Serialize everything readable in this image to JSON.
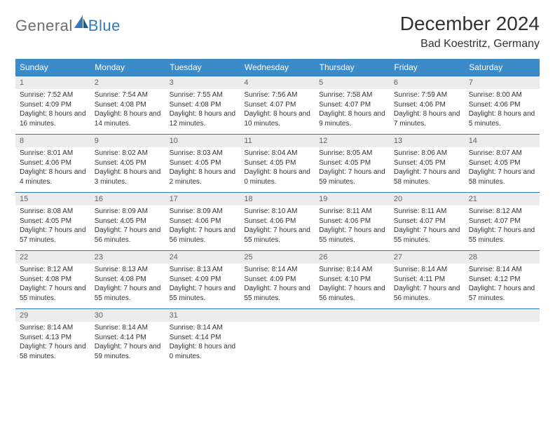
{
  "logo": {
    "part1": "General",
    "part2": "Blue"
  },
  "title": "December 2024",
  "subtitle": "Bad Koestritz, Germany",
  "colors": {
    "header_bg": "#3b8bc8",
    "header_text": "#ffffff",
    "rule": "#2f7bbf",
    "daynum_bg": "#ececec",
    "daynum_text": "#636363",
    "body_text": "#333333",
    "logo_gray": "#6e6e6e",
    "logo_blue": "#2f7bbf",
    "page_bg": "#ffffff"
  },
  "typography": {
    "title_fontsize": 28,
    "subtitle_fontsize": 16,
    "weekday_fontsize": 12,
    "daynum_fontsize": 11,
    "detail_fontsize": 10
  },
  "weekdays": [
    "Sunday",
    "Monday",
    "Tuesday",
    "Wednesday",
    "Thursday",
    "Friday",
    "Saturday"
  ],
  "weeks": [
    [
      {
        "day": "1",
        "sunrise": "Sunrise: 7:52 AM",
        "sunset": "Sunset: 4:09 PM",
        "daylight": "Daylight: 8 hours and 16 minutes."
      },
      {
        "day": "2",
        "sunrise": "Sunrise: 7:54 AM",
        "sunset": "Sunset: 4:08 PM",
        "daylight": "Daylight: 8 hours and 14 minutes."
      },
      {
        "day": "3",
        "sunrise": "Sunrise: 7:55 AM",
        "sunset": "Sunset: 4:08 PM",
        "daylight": "Daylight: 8 hours and 12 minutes."
      },
      {
        "day": "4",
        "sunrise": "Sunrise: 7:56 AM",
        "sunset": "Sunset: 4:07 PM",
        "daylight": "Daylight: 8 hours and 10 minutes."
      },
      {
        "day": "5",
        "sunrise": "Sunrise: 7:58 AM",
        "sunset": "Sunset: 4:07 PM",
        "daylight": "Daylight: 8 hours and 9 minutes."
      },
      {
        "day": "6",
        "sunrise": "Sunrise: 7:59 AM",
        "sunset": "Sunset: 4:06 PM",
        "daylight": "Daylight: 8 hours and 7 minutes."
      },
      {
        "day": "7",
        "sunrise": "Sunrise: 8:00 AM",
        "sunset": "Sunset: 4:06 PM",
        "daylight": "Daylight: 8 hours and 5 minutes."
      }
    ],
    [
      {
        "day": "8",
        "sunrise": "Sunrise: 8:01 AM",
        "sunset": "Sunset: 4:06 PM",
        "daylight": "Daylight: 8 hours and 4 minutes."
      },
      {
        "day": "9",
        "sunrise": "Sunrise: 8:02 AM",
        "sunset": "Sunset: 4:05 PM",
        "daylight": "Daylight: 8 hours and 3 minutes."
      },
      {
        "day": "10",
        "sunrise": "Sunrise: 8:03 AM",
        "sunset": "Sunset: 4:05 PM",
        "daylight": "Daylight: 8 hours and 2 minutes."
      },
      {
        "day": "11",
        "sunrise": "Sunrise: 8:04 AM",
        "sunset": "Sunset: 4:05 PM",
        "daylight": "Daylight: 8 hours and 0 minutes."
      },
      {
        "day": "12",
        "sunrise": "Sunrise: 8:05 AM",
        "sunset": "Sunset: 4:05 PM",
        "daylight": "Daylight: 7 hours and 59 minutes."
      },
      {
        "day": "13",
        "sunrise": "Sunrise: 8:06 AM",
        "sunset": "Sunset: 4:05 PM",
        "daylight": "Daylight: 7 hours and 58 minutes."
      },
      {
        "day": "14",
        "sunrise": "Sunrise: 8:07 AM",
        "sunset": "Sunset: 4:05 PM",
        "daylight": "Daylight: 7 hours and 58 minutes."
      }
    ],
    [
      {
        "day": "15",
        "sunrise": "Sunrise: 8:08 AM",
        "sunset": "Sunset: 4:05 PM",
        "daylight": "Daylight: 7 hours and 57 minutes."
      },
      {
        "day": "16",
        "sunrise": "Sunrise: 8:09 AM",
        "sunset": "Sunset: 4:05 PM",
        "daylight": "Daylight: 7 hours and 56 minutes."
      },
      {
        "day": "17",
        "sunrise": "Sunrise: 8:09 AM",
        "sunset": "Sunset: 4:06 PM",
        "daylight": "Daylight: 7 hours and 56 minutes."
      },
      {
        "day": "18",
        "sunrise": "Sunrise: 8:10 AM",
        "sunset": "Sunset: 4:06 PM",
        "daylight": "Daylight: 7 hours and 55 minutes."
      },
      {
        "day": "19",
        "sunrise": "Sunrise: 8:11 AM",
        "sunset": "Sunset: 4:06 PM",
        "daylight": "Daylight: 7 hours and 55 minutes."
      },
      {
        "day": "20",
        "sunrise": "Sunrise: 8:11 AM",
        "sunset": "Sunset: 4:07 PM",
        "daylight": "Daylight: 7 hours and 55 minutes."
      },
      {
        "day": "21",
        "sunrise": "Sunrise: 8:12 AM",
        "sunset": "Sunset: 4:07 PM",
        "daylight": "Daylight: 7 hours and 55 minutes."
      }
    ],
    [
      {
        "day": "22",
        "sunrise": "Sunrise: 8:12 AM",
        "sunset": "Sunset: 4:08 PM",
        "daylight": "Daylight: 7 hours and 55 minutes."
      },
      {
        "day": "23",
        "sunrise": "Sunrise: 8:13 AM",
        "sunset": "Sunset: 4:08 PM",
        "daylight": "Daylight: 7 hours and 55 minutes."
      },
      {
        "day": "24",
        "sunrise": "Sunrise: 8:13 AM",
        "sunset": "Sunset: 4:09 PM",
        "daylight": "Daylight: 7 hours and 55 minutes."
      },
      {
        "day": "25",
        "sunrise": "Sunrise: 8:14 AM",
        "sunset": "Sunset: 4:09 PM",
        "daylight": "Daylight: 7 hours and 55 minutes."
      },
      {
        "day": "26",
        "sunrise": "Sunrise: 8:14 AM",
        "sunset": "Sunset: 4:10 PM",
        "daylight": "Daylight: 7 hours and 56 minutes."
      },
      {
        "day": "27",
        "sunrise": "Sunrise: 8:14 AM",
        "sunset": "Sunset: 4:11 PM",
        "daylight": "Daylight: 7 hours and 56 minutes."
      },
      {
        "day": "28",
        "sunrise": "Sunrise: 8:14 AM",
        "sunset": "Sunset: 4:12 PM",
        "daylight": "Daylight: 7 hours and 57 minutes."
      }
    ],
    [
      {
        "day": "29",
        "sunrise": "Sunrise: 8:14 AM",
        "sunset": "Sunset: 4:13 PM",
        "daylight": "Daylight: 7 hours and 58 minutes."
      },
      {
        "day": "30",
        "sunrise": "Sunrise: 8:14 AM",
        "sunset": "Sunset: 4:14 PM",
        "daylight": "Daylight: 7 hours and 59 minutes."
      },
      {
        "day": "31",
        "sunrise": "Sunrise: 8:14 AM",
        "sunset": "Sunset: 4:14 PM",
        "daylight": "Daylight: 8 hours and 0 minutes."
      },
      null,
      null,
      null,
      null
    ]
  ]
}
